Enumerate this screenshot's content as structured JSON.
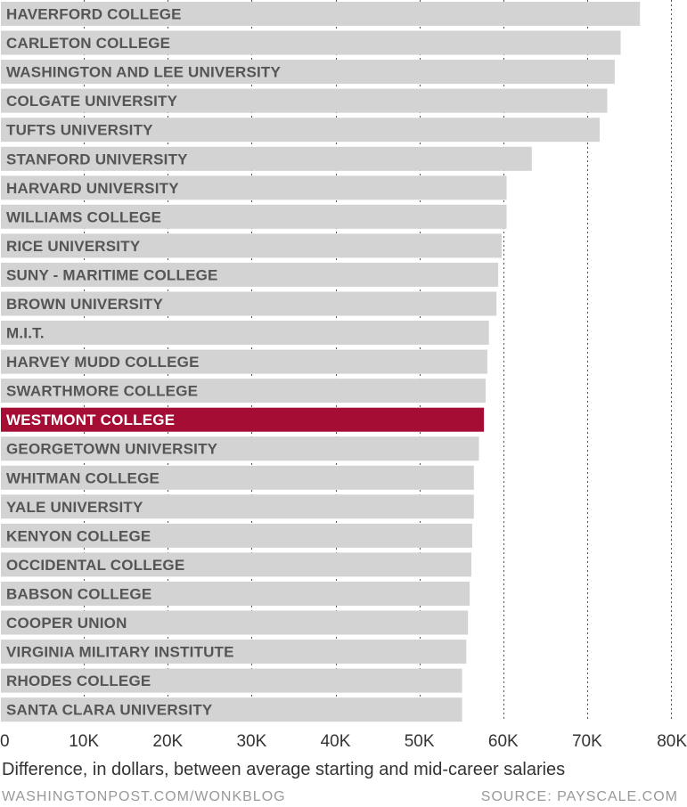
{
  "chart_data": {
    "type": "bar",
    "orientation": "horizontal",
    "title": "",
    "xlabel": "Difference, in dollars, between average starting and mid-career salaries",
    "ylabel": "",
    "xlim": [
      0,
      80000
    ],
    "grid": true,
    "highlight_color": "#a50d35",
    "bar_color": "#d3d3d3",
    "categories": [
      "HAVERFORD COLLEGE",
      "CARLETON COLLEGE",
      "WASHINGTON AND LEE UNIVERSITY",
      "COLGATE UNIVERSITY",
      "TUFTS UNIVERSITY",
      "STANFORD UNIVERSITY",
      "HARVARD UNIVERSITY",
      "WILLIAMS COLLEGE",
      "RICE UNIVERSITY",
      "SUNY - MARITIME COLLEGE",
      "BROWN UNIVERSITY",
      "M.I.T.",
      "HARVEY MUDD COLLEGE",
      "SWARTHMORE COLLEGE",
      "WESTMONT COLLEGE",
      "GEORGETOWN UNIVERSITY",
      "WHITMAN COLLEGE",
      "YALE UNIVERSITY",
      "KENYON COLLEGE",
      "OCCIDENTAL COLLEGE",
      "BABSON COLLEGE",
      "COOPER UNION",
      "VIRGINIA MILITARY INSTITUTE",
      "RHODES COLLEGE",
      "SANTA CLARA UNIVERSITY"
    ],
    "values": [
      76300,
      74000,
      73300,
      72400,
      71500,
      63400,
      60400,
      60400,
      59800,
      59400,
      59200,
      58300,
      58100,
      57900,
      57700,
      57100,
      56500,
      56500,
      56300,
      56200,
      56000,
      55800,
      55600,
      55100,
      55100
    ],
    "highlight": "WESTMONT COLLEGE",
    "x_ticks": [
      0,
      10000,
      20000,
      30000,
      40000,
      50000,
      60000,
      70000,
      80000
    ],
    "x_tick_labels": [
      "0",
      "10K",
      "20K",
      "30K",
      "40K",
      "50K",
      "60K",
      "70K",
      "80K"
    ]
  },
  "footer": {
    "left": "WASHINGTONPOST.COM/WONKBLOG",
    "right": "SOURCE: PAYSCALE.COM"
  }
}
